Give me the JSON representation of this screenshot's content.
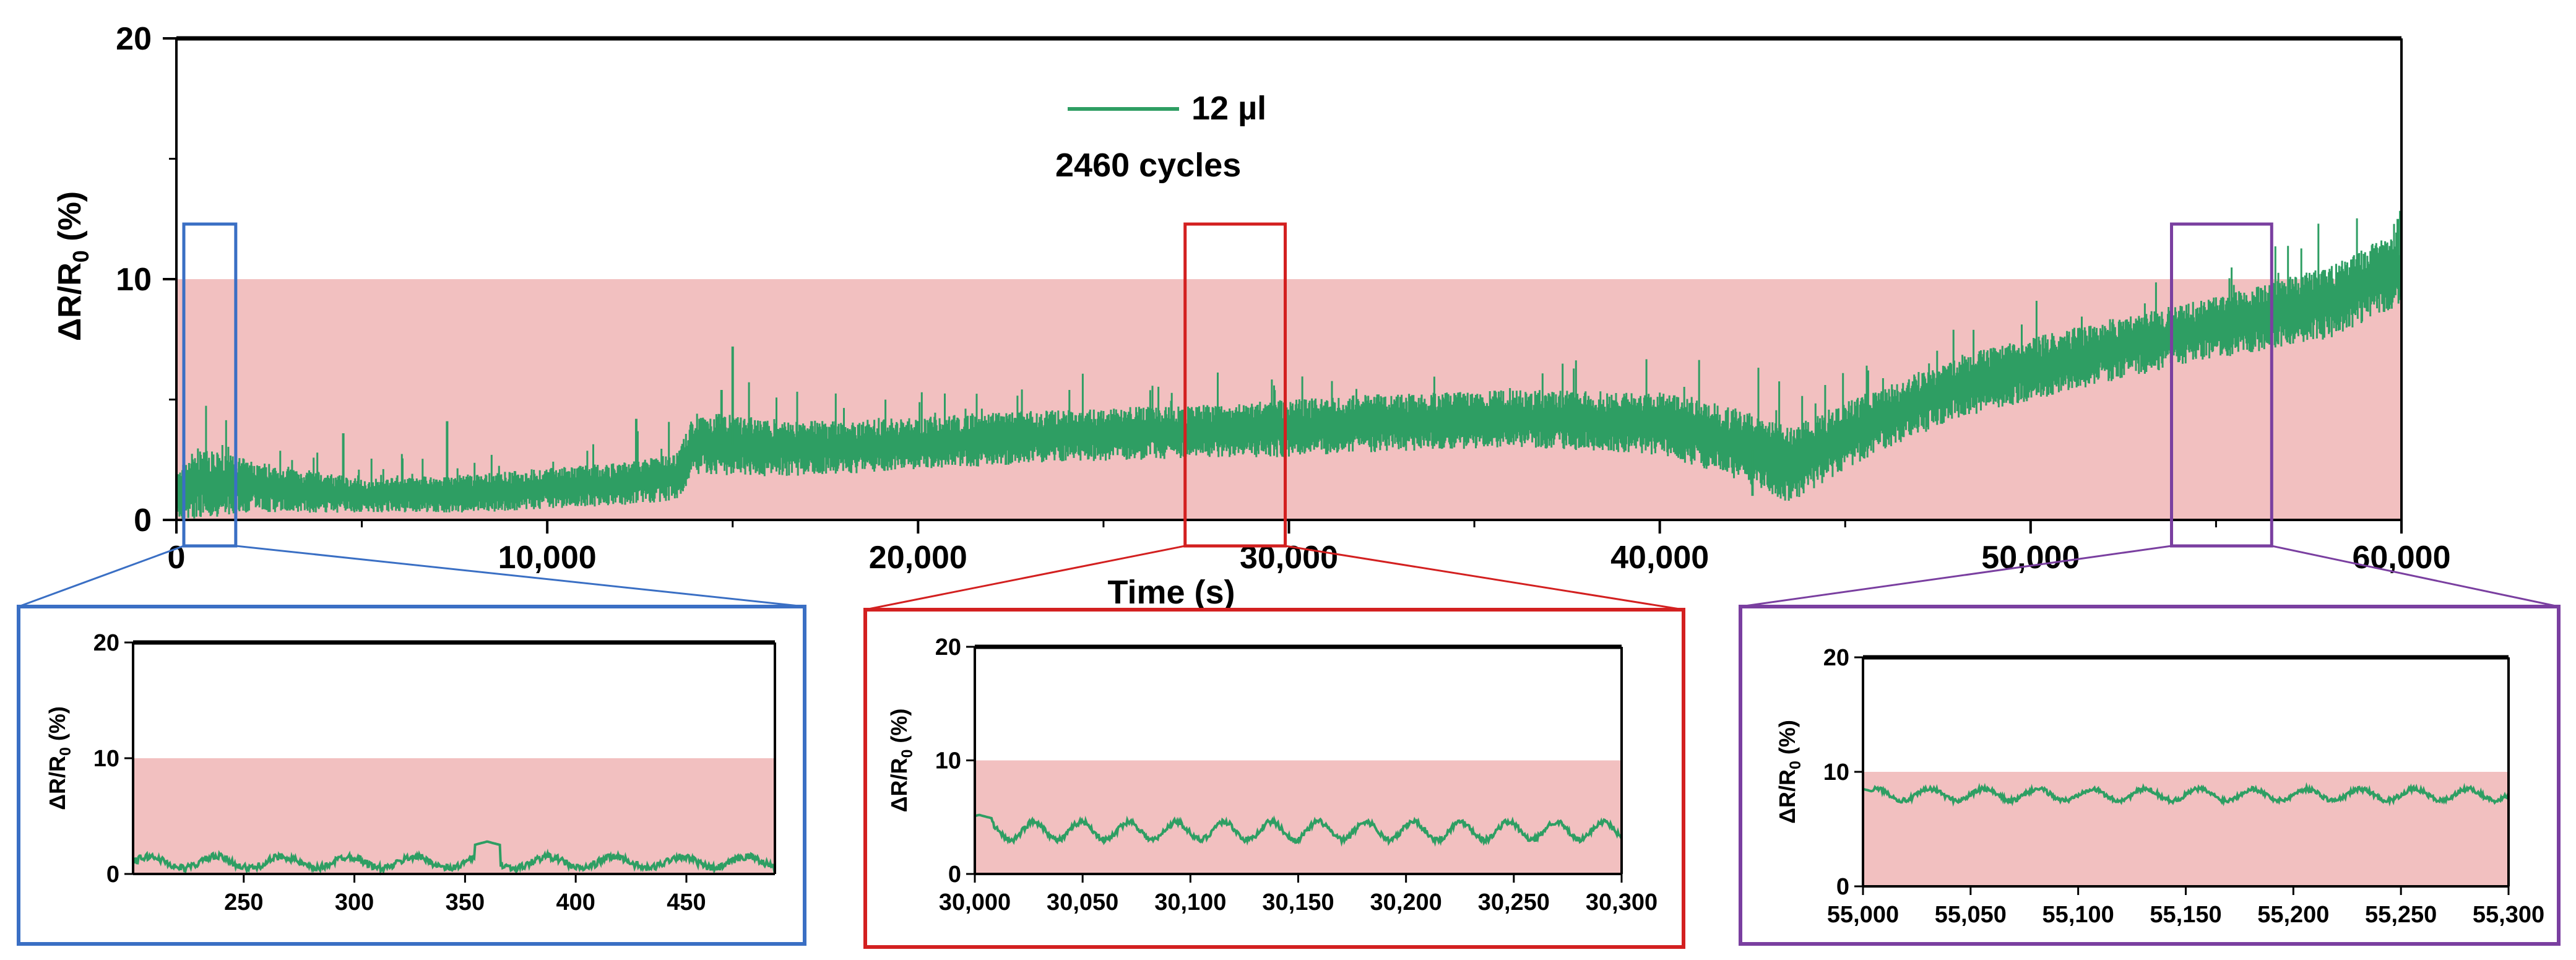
{
  "chart_data": {
    "main": {
      "type": "line",
      "xlabel": "Time (s)",
      "ylabel": "ΔR/R0 (%)",
      "ylabel_main": "ΔR/R",
      "ylabel_sub": "0",
      "ylabel_unit": " (%)",
      "xlim": [
        0,
        60000
      ],
      "ylim": [
        0,
        20
      ],
      "x_ticks": [
        0,
        10000,
        20000,
        30000,
        40000,
        50000,
        60000
      ],
      "x_tick_labels": [
        "0",
        "10,000",
        "20,000",
        "30,000",
        "40,000",
        "50,000",
        "60,000"
      ],
      "y_ticks": [
        0,
        10,
        20
      ],
      "y_tick_labels": [
        "0",
        "10",
        "20"
      ],
      "shaded_band": {
        "from": 0,
        "to": 10,
        "color": "#f2c0c0"
      },
      "legend": {
        "label": "12 µl",
        "color": "#2e9e63",
        "position": "top-center"
      },
      "annotation": "2460 cycles",
      "series": [
        {
          "name": "12 µl",
          "color": "#2e9e63",
          "x": [
            0,
            500,
            2000,
            5000,
            8000,
            12000,
            13500,
            14000,
            16000,
            18000,
            20000,
            24000,
            28000,
            30000,
            32000,
            36000,
            40000,
            42000,
            43500,
            45000,
            48000,
            52000,
            55000,
            58000,
            60000
          ],
          "y": [
            1.0,
            1.5,
            1.4,
            1.0,
            1.1,
            1.5,
            1.8,
            3.2,
            3.0,
            3.0,
            3.2,
            3.5,
            3.7,
            3.8,
            4.0,
            4.2,
            4.0,
            3.2,
            2.3,
            3.5,
            5.5,
            7.0,
            8.0,
            9.0,
            10.5
          ],
          "amp": [
            1.0,
            1.5,
            1.1,
            0.7,
            0.8,
            0.9,
            1.0,
            1.3,
            1.2,
            1.1,
            1.1,
            1.1,
            1.1,
            1.2,
            1.2,
            1.2,
            1.3,
            1.5,
            1.6,
            1.4,
            1.3,
            1.3,
            1.3,
            1.5,
            1.6
          ]
        }
      ],
      "zoom_regions": [
        {
          "x0": 200,
          "x1": 1600,
          "color": "#3a6fc4"
        },
        {
          "x0": 27200,
          "x1": 29900,
          "color": "#d32020"
        },
        {
          "x0": 53800,
          "x1": 56500,
          "color": "#7a3fa0"
        }
      ]
    },
    "insets": [
      {
        "type": "line",
        "frame_color": "#3a6fc4",
        "ylabel": "ΔR/R0 (%)",
        "xlim": [
          200,
          490
        ],
        "ylim": [
          0,
          20
        ],
        "x_ticks": [
          250,
          300,
          350,
          400,
          450
        ],
        "x_tick_labels": [
          "250",
          "300",
          "350",
          "400",
          "450"
        ],
        "y_ticks": [
          0,
          10,
          20
        ],
        "y_tick_labels": [
          "0",
          "10",
          "20"
        ],
        "shaded_band": {
          "from": 0,
          "to": 10
        },
        "series": [
          {
            "name": "12 µl",
            "color": "#2e9e63",
            "base": 1.0,
            "wave_amp": 0.5,
            "period": 30,
            "noise": 0.6,
            "bump_x": 360,
            "bump_y": 2.8
          }
        ]
      },
      {
        "type": "line",
        "frame_color": "#d32020",
        "ylabel": "ΔR/R0 (%)",
        "xlim": [
          30000,
          30300
        ],
        "ylim": [
          0,
          20
        ],
        "x_ticks": [
          30000,
          30050,
          30100,
          30150,
          30200,
          30250,
          30300
        ],
        "x_tick_labels": [
          "30,000",
          "30,050",
          "30,100",
          "30,150",
          "30,200",
          "30,250",
          "30,300"
        ],
        "y_ticks": [
          0,
          10,
          20
        ],
        "y_tick_labels": [
          "0",
          "10",
          "20"
        ],
        "shaded_band": {
          "from": 0,
          "to": 10
        },
        "series": [
          {
            "name": "12 µl",
            "color": "#2e9e63",
            "base": 3.8,
            "wave_amp": 0.8,
            "period": 22,
            "noise": 0.5,
            "bump_x": 30002,
            "bump_y": 5.2
          }
        ]
      },
      {
        "type": "line",
        "frame_color": "#7a3fa0",
        "ylabel": "ΔR/R0 (%)",
        "xlim": [
          55000,
          55300
        ],
        "ylim": [
          0,
          20
        ],
        "x_ticks": [
          55000,
          55050,
          55100,
          55150,
          55200,
          55250,
          55300
        ],
        "x_tick_labels": [
          "55,000",
          "55,050",
          "55,100",
          "55,150",
          "55,200",
          "55,250",
          "55,300"
        ],
        "y_ticks": [
          0,
          10,
          20
        ],
        "y_tick_labels": [
          "0",
          "10",
          "20"
        ],
        "shaded_band": {
          "from": 0,
          "to": 10
        },
        "series": [
          {
            "name": "12 µl",
            "color": "#2e9e63",
            "base": 8.0,
            "wave_amp": 0.5,
            "period": 25,
            "noise": 0.4,
            "bump_x": 55000,
            "bump_y": 8.5
          }
        ]
      }
    ]
  }
}
